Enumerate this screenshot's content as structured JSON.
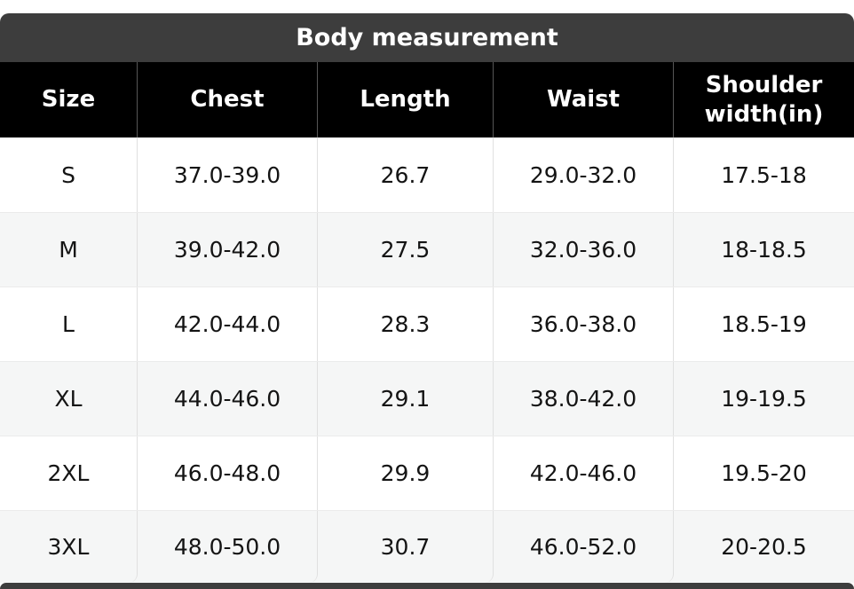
{
  "chart_data": {
    "type": "table",
    "title": "Body measurement",
    "columns": [
      "Size",
      "Chest",
      "Length",
      "Waist",
      "Shoulder width(in)"
    ],
    "rows": [
      [
        "S",
        "37.0-39.0",
        "26.7",
        "29.0-32.0",
        "17.5-18"
      ],
      [
        "M",
        "39.0-42.0",
        "27.5",
        "32.0-36.0",
        "18-18.5"
      ],
      [
        "L",
        "42.0-44.0",
        "28.3",
        "36.0-38.0",
        "18.5-19"
      ],
      [
        "XL",
        "44.0-46.0",
        "29.1",
        "38.0-42.0",
        "19-19.5"
      ],
      [
        "2XL",
        "46.0-48.0",
        "29.9",
        "42.0-46.0",
        "19.5-20"
      ],
      [
        "3XL",
        "48.0-50.0",
        "30.7",
        "46.0-52.0",
        "20-20.5"
      ]
    ],
    "layout": {
      "legend": "none",
      "grid": "vertical-dividers",
      "row_striping": true
    }
  },
  "colors": {
    "title_bar_bg": "#3d3d3d",
    "header_bg": "#000000",
    "header_text": "#ffffff",
    "row_bg": "#ffffff",
    "row_alt_bg": "#f5f6f6",
    "cell_border": "#e0e0e0",
    "body_text": "#141414"
  }
}
